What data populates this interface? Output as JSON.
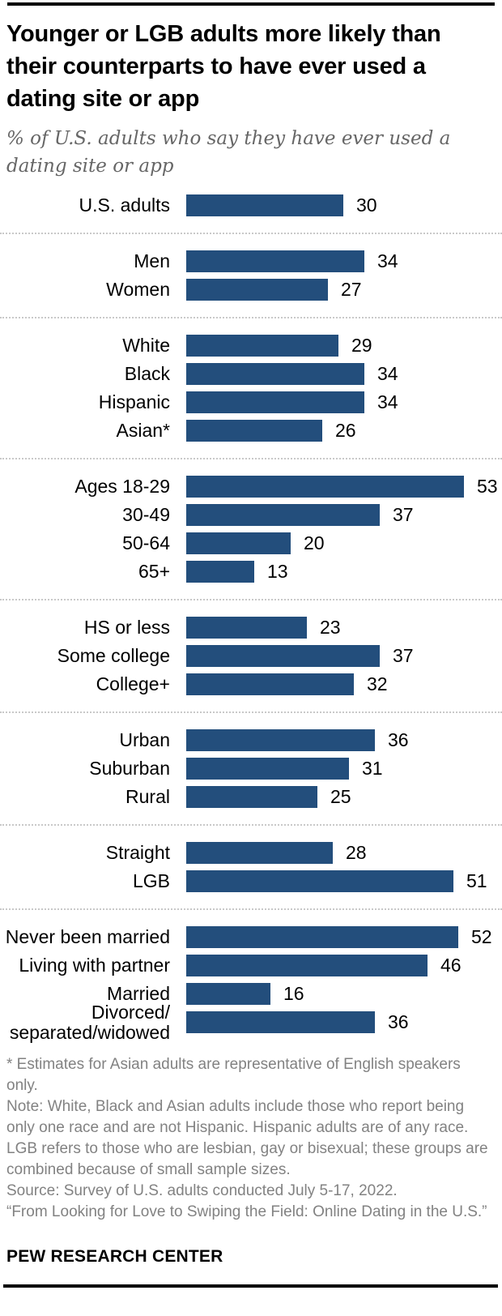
{
  "chart_data": {
    "type": "bar",
    "orientation": "horizontal",
    "title": "Younger or LGB adults more likely than their counterparts to have ever used a dating site or app",
    "subtitle": "% of U.S. adults who say they have ever used a dating site or app",
    "unit": "%",
    "value_labels": true,
    "grid": false,
    "xlim": [
      0,
      60
    ],
    "bar_color": "#234E7C",
    "groups": [
      {
        "rows": [
          {
            "label": "U.S. adults",
            "value": 30
          }
        ]
      },
      {
        "rows": [
          {
            "label": "Men",
            "value": 34
          },
          {
            "label": "Women",
            "value": 27
          }
        ]
      },
      {
        "rows": [
          {
            "label": "White",
            "value": 29
          },
          {
            "label": "Black",
            "value": 34
          },
          {
            "label": "Hispanic",
            "value": 34
          },
          {
            "label": "Asian*",
            "value": 26
          }
        ]
      },
      {
        "rows": [
          {
            "label": "Ages 18-29",
            "value": 53
          },
          {
            "label": "30-49",
            "value": 37
          },
          {
            "label": "50-64",
            "value": 20
          },
          {
            "label": "65+",
            "value": 13
          }
        ]
      },
      {
        "rows": [
          {
            "label": "HS or less",
            "value": 23
          },
          {
            "label": "Some college",
            "value": 37
          },
          {
            "label": "College+",
            "value": 32
          }
        ]
      },
      {
        "rows": [
          {
            "label": "Urban",
            "value": 36
          },
          {
            "label": "Suburban",
            "value": 31
          },
          {
            "label": "Rural",
            "value": 25
          }
        ]
      },
      {
        "rows": [
          {
            "label": "Straight",
            "value": 28
          },
          {
            "label": "LGB",
            "value": 51
          }
        ]
      },
      {
        "rows": [
          {
            "label": "Never been married",
            "value": 52
          },
          {
            "label": "Living with partner",
            "value": 46
          },
          {
            "label": "Married",
            "value": 16
          },
          {
            "label": "Divorced/​separated/widowed",
            "value": 36
          }
        ]
      }
    ]
  },
  "notes": {
    "paragraphs": [
      "* Estimates for Asian adults are representative of English speakers only.",
      "Note: White, Black and Asian adults include those who report being only one race and are not Hispanic. Hispanic adults are of any race. LGB refers to those who are lesbian, gay or bisexual; these groups are combined because of small sample sizes.",
      "Source: Survey of U.S. adults conducted July 5-17, 2022.",
      "“From Looking for Love to Swiping the Field: Online Dating in the U.S.”"
    ]
  },
  "footer": {
    "brand": "PEW RESEARCH CENTER"
  }
}
